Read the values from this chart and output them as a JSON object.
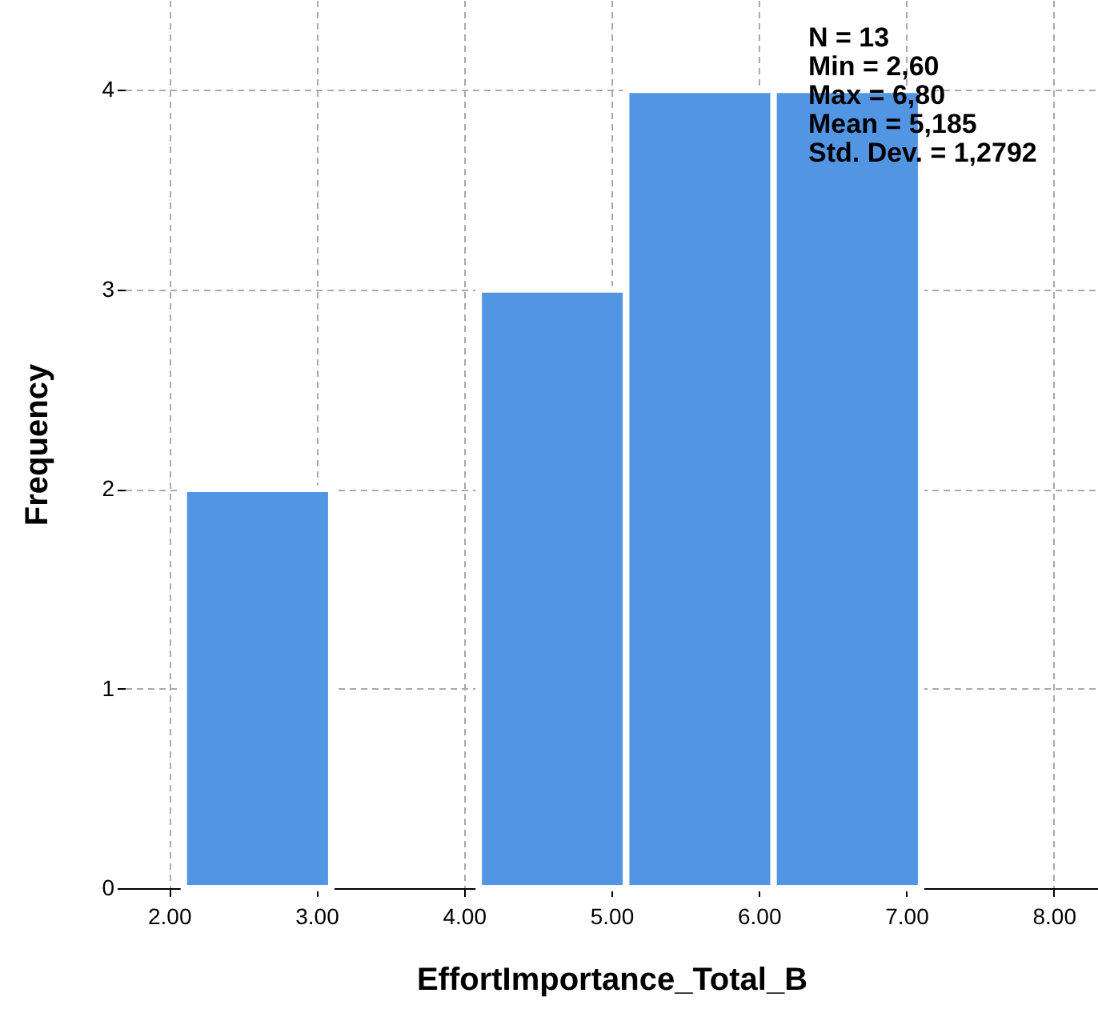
{
  "chart_data": {
    "type": "histogram",
    "xlabel": "EffortImportance_Total_B",
    "ylabel": "Frequency",
    "bins": [
      2.1,
      3.1,
      4.1,
      5.1,
      6.1,
      7.1
    ],
    "values": [
      2,
      0,
      3,
      4,
      4
    ],
    "color": "#5295e3",
    "xlim": [
      1.7,
      8.3
    ],
    "xticks": [
      {
        "value": 2,
        "label": "2.00"
      },
      {
        "value": 3,
        "label": "3.00"
      },
      {
        "value": 4,
        "label": "4.00"
      },
      {
        "value": 5,
        "label": "5.00"
      },
      {
        "value": 6,
        "label": "6.00"
      },
      {
        "value": 7,
        "label": "7.00"
      },
      {
        "value": 8,
        "label": "8.00"
      }
    ],
    "ylim": [
      0,
      4.45
    ],
    "yticks": [
      0,
      1,
      2,
      3,
      4
    ],
    "grid": true,
    "annotations": [
      "N = 13",
      "Min = 2,60",
      "Max = 6,80",
      "Mean = 5,185",
      "Std. Dev. = 1,2792"
    ]
  }
}
